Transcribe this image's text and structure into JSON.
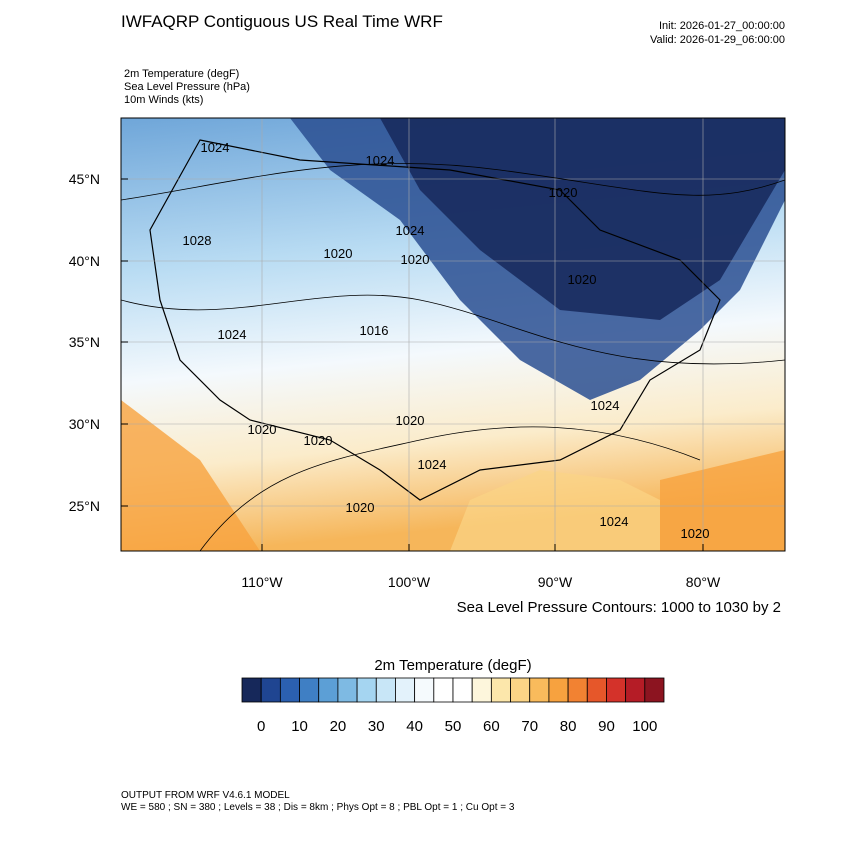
{
  "header": {
    "title": "IWFAQRP Contiguous US Real Time WRF",
    "init": "Init: 2026-01-27_00:00:00",
    "valid": "Valid: 2026-01-29_06:00:00",
    "fields": [
      "2m Temperature   (degF)",
      "Sea Level Pressure   (hPa)",
      "10m Winds   (kts)"
    ]
  },
  "map": {
    "lat_labels": [
      "45°N",
      "40°N",
      "35°N",
      "30°N",
      "25°N"
    ],
    "lon_labels": [
      "110°W",
      "100°W",
      "90°W",
      "80°W"
    ],
    "contour_labels": [
      "1024",
      "1024",
      "1020",
      "1024",
      "1028",
      "1020",
      "1020",
      "1016",
      "1024",
      "1020",
      "1020",
      "1020",
      "1020",
      "1024",
      "1024",
      "1020",
      "1024",
      "1020"
    ],
    "contour_note": "Sea Level Pressure Contours: 1000 to 1030 by 2"
  },
  "colorbar": {
    "title": "2m Temperature  (degF)",
    "ticks": [
      0,
      10,
      20,
      30,
      40,
      50,
      60,
      70,
      80,
      90,
      100
    ],
    "colors": [
      "#16285a",
      "#1f4591",
      "#2b60b0",
      "#3f7fc4",
      "#5c9fd6",
      "#7ebae3",
      "#a5d5f1",
      "#c8e6f7",
      "#e3f2fb",
      "#f5fafd",
      "#ffffff",
      "#ffffff",
      "#fdf6dc",
      "#fce7ab",
      "#fbd486",
      "#f9bb5c",
      "#f7a23f",
      "#f28232",
      "#e6572a",
      "#d4322a",
      "#b51c26",
      "#8c1420"
    ]
  },
  "footer": {
    "line1": "OUTPUT FROM WRF V4.6.1 MODEL",
    "line2": "WE = 580 ; SN = 380 ; Levels = 38 ; Dis = 8km ; Phys Opt = 8 ; PBL Opt = 1 ; Cu Opt = 3"
  }
}
